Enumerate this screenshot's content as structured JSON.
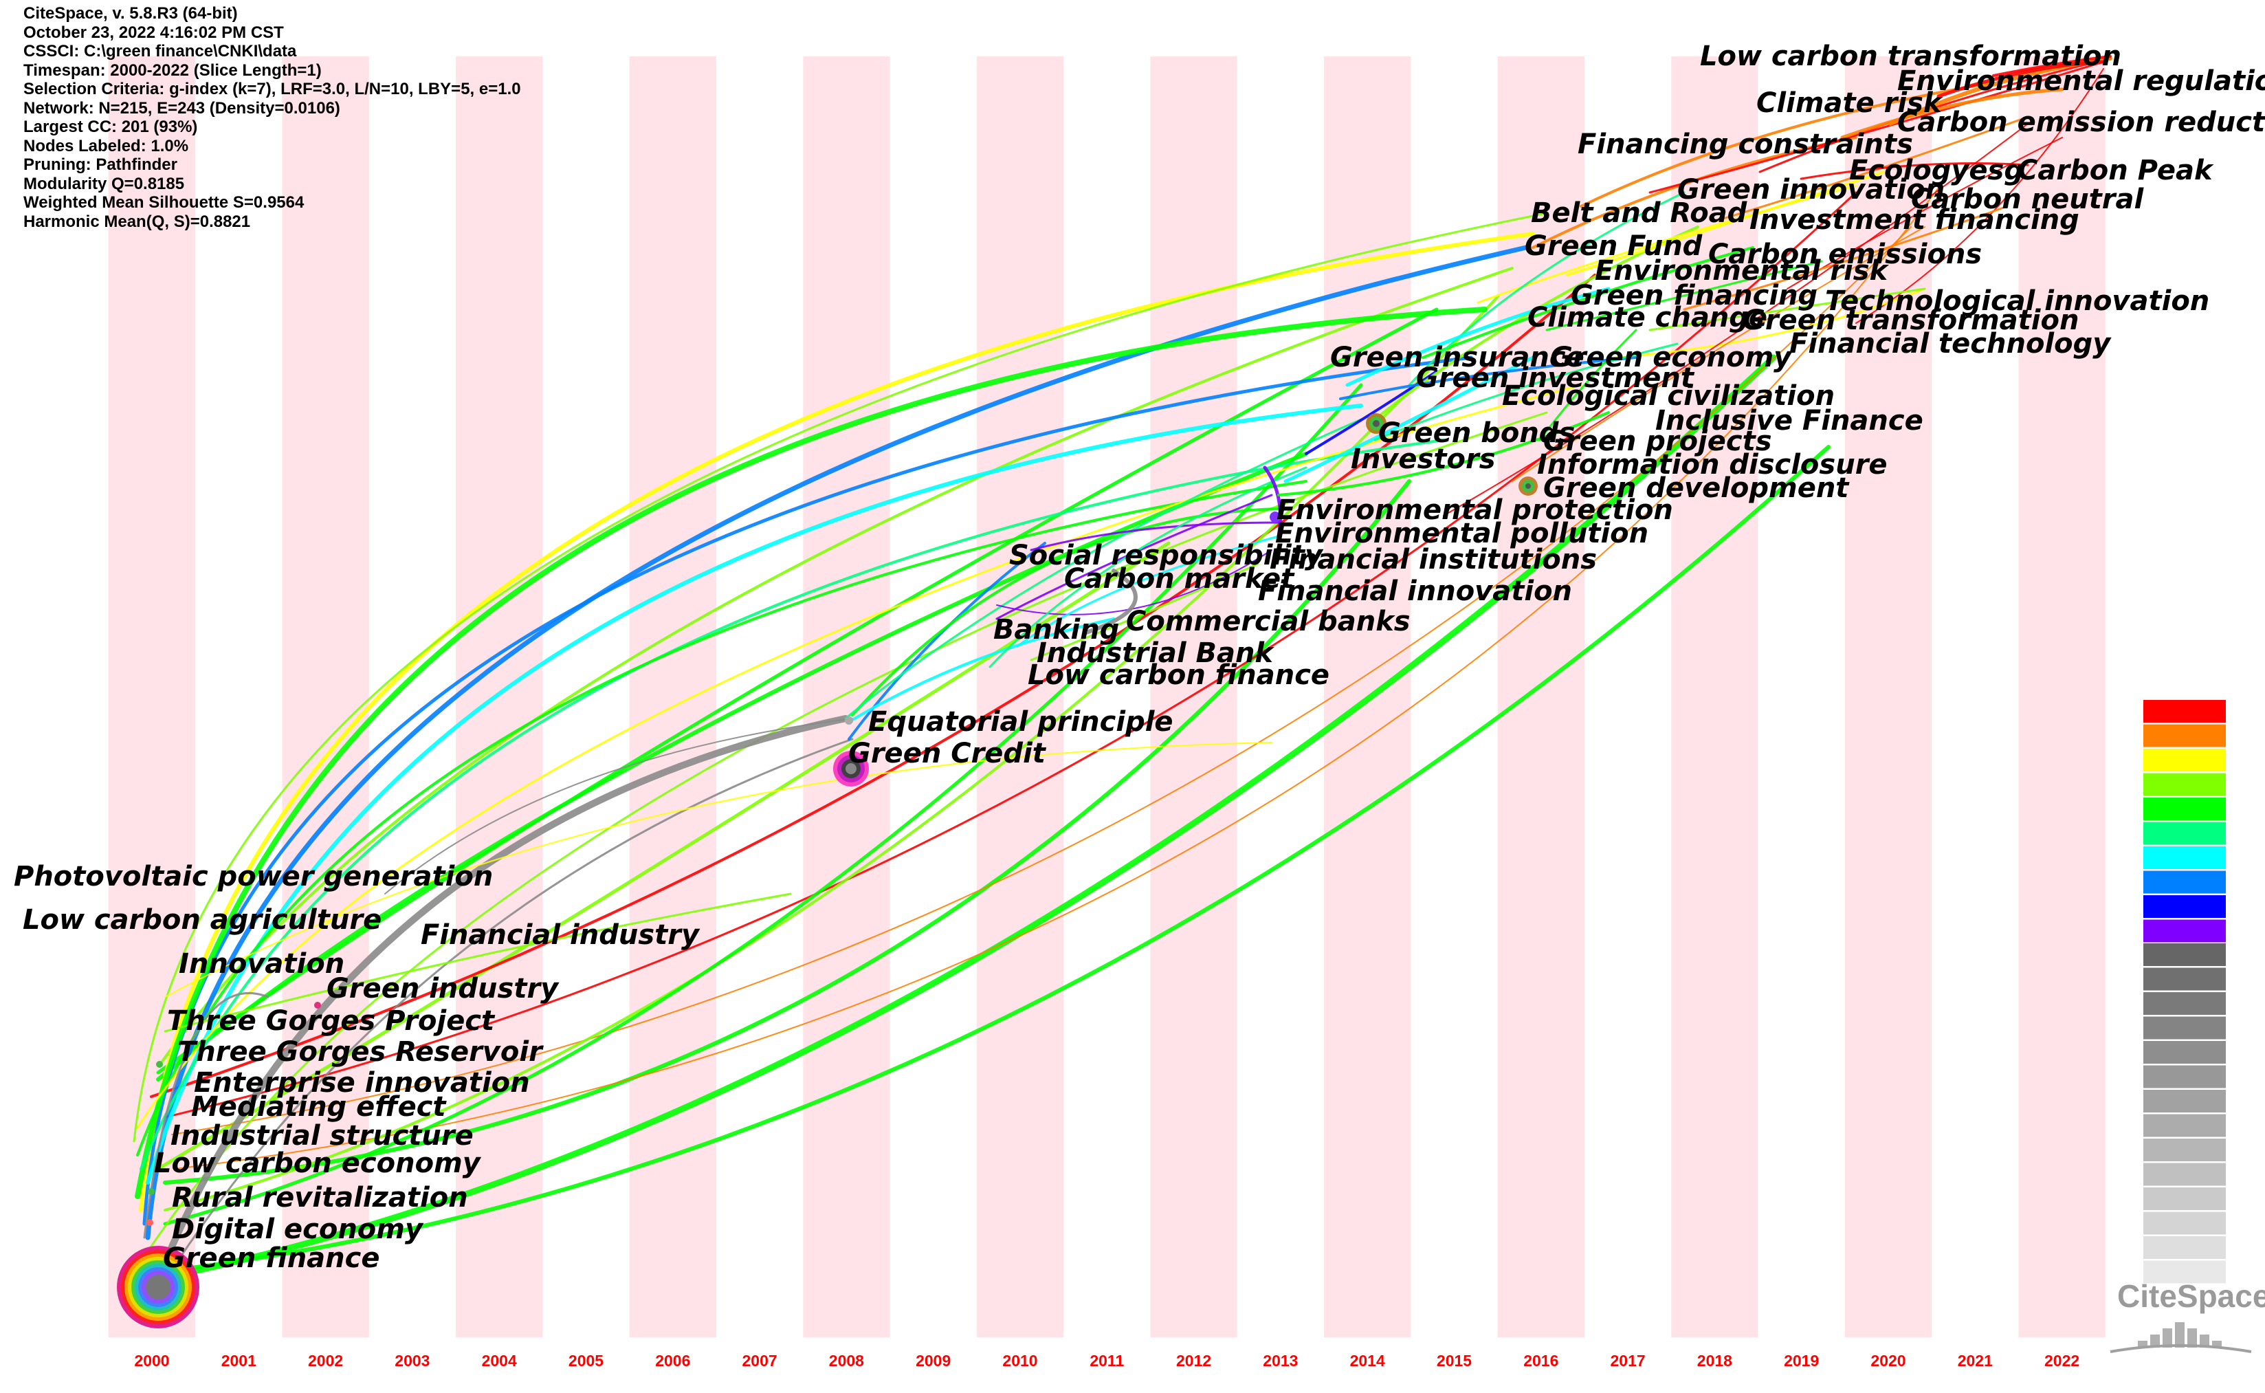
{
  "meta": {
    "lines": [
      "CiteSpace, v. 5.8.R3 (64-bit)",
      "October 23, 2022 4:16:02 PM CST",
      "CSSCI: C:\\green finance\\CNKI\\data",
      "Timespan: 2000-2022 (Slice Length=1)",
      "Selection Criteria: g-index (k=7), LRF=3.0, L/N=10, LBY=5, e=1.0",
      "Network: N=215, E=243 (Density=0.0106)",
      "Largest CC: 201 (93%)",
      "Nodes Labeled: 1.0%",
      "Pruning: Pathfinder",
      "Modularity Q=0.8185",
      "Weighted Mean Silhouette S=0.9564",
      "Harmonic Mean(Q, S)=0.8821"
    ]
  },
  "years": [
    "2000",
    "2001",
    "2002",
    "2003",
    "2004",
    "2005",
    "2006",
    "2007",
    "2008",
    "2009",
    "2010",
    "2011",
    "2012",
    "2013",
    "2014",
    "2015",
    "2016",
    "2017",
    "2018",
    "2019",
    "2020",
    "2021",
    "2022"
  ],
  "keywords": [
    "Low carbon transformation",
    "Environmental regulation",
    "Climate risk",
    "Carbon emission reduction",
    "Financing constraints",
    "Ecologyesg",
    "Carbon Peak",
    "Green innovation",
    "Carbon neutral",
    "Belt and Road",
    "Investment financing",
    "Green Fund",
    "Carbon emissions",
    "Environmental risk",
    "Green financing",
    "Technological innovation",
    "Climate change",
    "Green transformation",
    "Green insurance",
    "Green economy",
    "Financial technology",
    "Green investment",
    "Ecological civilization",
    "Inclusive Finance",
    "Green bonds",
    "Green projects",
    "Investors",
    "Information disclosure",
    "Green development",
    "Environmental protection",
    "Environmental pollution",
    "Social responsibility",
    "Financial institutions",
    "Carbon market",
    "Financial innovation",
    "Commercial banks",
    "Banking",
    "Industrial Bank",
    "Low carbon finance",
    "Equatorial principle",
    "Green Credit",
    "Photovoltaic power generation",
    "Low carbon agriculture",
    "Financial industry",
    "Innovation",
    "Green industry",
    "Three Gorges Project",
    "Three Gorges Reservoir",
    "Enterprise innovation",
    "Mediating effect",
    "Industrial structure",
    "Low carbon economy",
    "Rural revitalization",
    "Digital economy",
    "Green finance"
  ],
  "legend_colors": [
    "#ff0000",
    "#ff8000",
    "#ffff00",
    "#80ff00",
    "#00ff00",
    "#00ff80",
    "#00ffff",
    "#0080ff",
    "#0000ff",
    "#8000ff"
  ],
  "legend_grays": [
    "#666666",
    "#707070",
    "#7a7a7a",
    "#848484",
    "#8e8e8e",
    "#989898",
    "#a2a2a2",
    "#acacac",
    "#b6b6b6",
    "#c0c0c0",
    "#cacaca",
    "#d4d4d4",
    "#dedede",
    "#e8e8e8"
  ],
  "logo_text": "CiteSpace"
}
